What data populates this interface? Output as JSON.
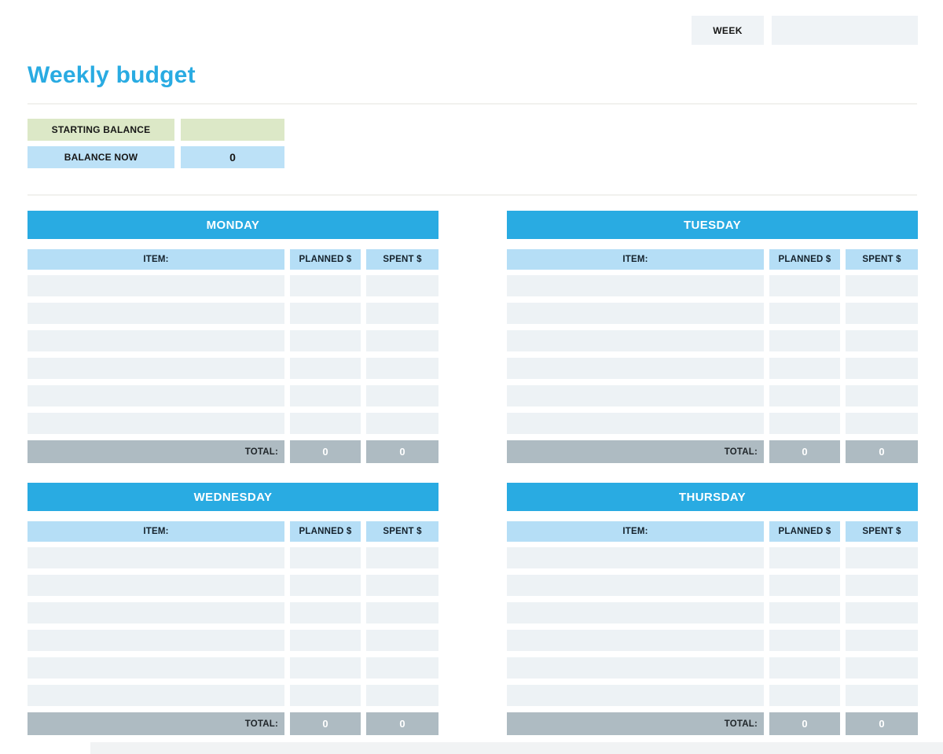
{
  "page": {
    "title": "Weekly budget",
    "week_label": "WEEK",
    "week_value": ""
  },
  "balance": {
    "starting_label": "STARTING BALANCE",
    "starting_value": "",
    "now_label": "BALANCE NOW",
    "now_value": "0"
  },
  "table_headers": {
    "item": "ITEM:",
    "planned": "PLANNED $",
    "spent": "SPENT $",
    "total": "TOTAL:"
  },
  "days": [
    {
      "name": "MONDAY",
      "rows": [
        [
          "",
          "",
          ""
        ],
        [
          "",
          "",
          ""
        ],
        [
          "",
          "",
          ""
        ],
        [
          "",
          "",
          ""
        ],
        [
          "",
          "",
          ""
        ],
        [
          "",
          "",
          ""
        ]
      ],
      "totals": {
        "planned": "0",
        "spent": "0"
      }
    },
    {
      "name": "TUESDAY",
      "rows": [
        [
          "",
          "",
          ""
        ],
        [
          "",
          "",
          ""
        ],
        [
          "",
          "",
          ""
        ],
        [
          "",
          "",
          ""
        ],
        [
          "",
          "",
          ""
        ],
        [
          "",
          "",
          ""
        ]
      ],
      "totals": {
        "planned": "0",
        "spent": "0"
      }
    },
    {
      "name": "WEDNESDAY",
      "rows": [
        [
          "",
          "",
          ""
        ],
        [
          "",
          "",
          ""
        ],
        [
          "",
          "",
          ""
        ],
        [
          "",
          "",
          ""
        ],
        [
          "",
          "",
          ""
        ],
        [
          "",
          "",
          ""
        ]
      ],
      "totals": {
        "planned": "0",
        "spent": "0"
      }
    },
    {
      "name": "THURSDAY",
      "rows": [
        [
          "",
          "",
          ""
        ],
        [
          "",
          "",
          ""
        ],
        [
          "",
          "",
          ""
        ],
        [
          "",
          "",
          ""
        ],
        [
          "",
          "",
          ""
        ],
        [
          "",
          "",
          ""
        ]
      ],
      "totals": {
        "planned": "0",
        "spent": "0"
      }
    }
  ],
  "colors": {
    "accent_blue": "#29abe2",
    "column_header_blue": "#b5def6",
    "balance_blue": "#bce1f7",
    "starting_green": "#dce8c7",
    "row_gray": "#edf2f5",
    "total_gray": "#aebbc2",
    "box_gray": "#eff3f6"
  }
}
